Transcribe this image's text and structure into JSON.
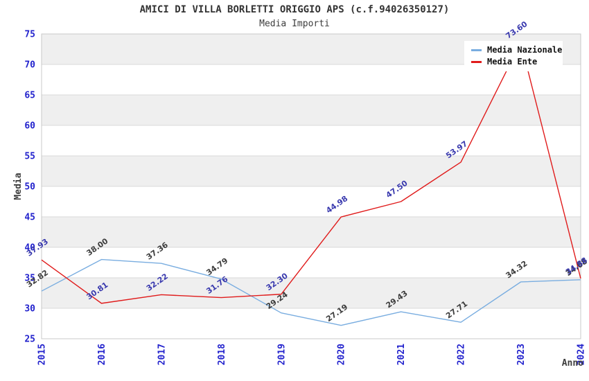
{
  "chart_data": {
    "type": "line",
    "title": "AMICI DI VILLA BORLETTI ORIGGIO APS (c.f.94026350127)",
    "subtitle": "Media Importi",
    "xlabel": "Anno",
    "ylabel": "Media",
    "categories": [
      "2015",
      "2016",
      "2017",
      "2018",
      "2019",
      "2020",
      "2021",
      "2022",
      "2023",
      "2024"
    ],
    "ylim": [
      25,
      75
    ],
    "yticks": [
      25,
      30,
      35,
      40,
      45,
      50,
      55,
      60,
      65,
      70,
      75
    ],
    "grid": true,
    "band_fill": "#efefef",
    "grid_color": "#d9d9d9",
    "border_color": "#c9c9c9",
    "tick_color": "#2323cd",
    "legend_position": "upper right",
    "point_label_format": "two-decimals",
    "series": [
      {
        "name": "Media Nazionale",
        "color": "#79ADE0",
        "label_color": "#3C3C3C",
        "values": [
          32.82,
          38.0,
          37.36,
          34.79,
          29.24,
          27.19,
          29.43,
          27.71,
          34.32,
          34.68
        ]
      },
      {
        "name": "Media Ente",
        "color": "#E01B1B",
        "label_color": "#3939AE",
        "values": [
          37.93,
          30.81,
          32.22,
          31.76,
          32.3,
          44.98,
          47.5,
          53.97,
          73.6,
          34.88
        ]
      }
    ]
  }
}
